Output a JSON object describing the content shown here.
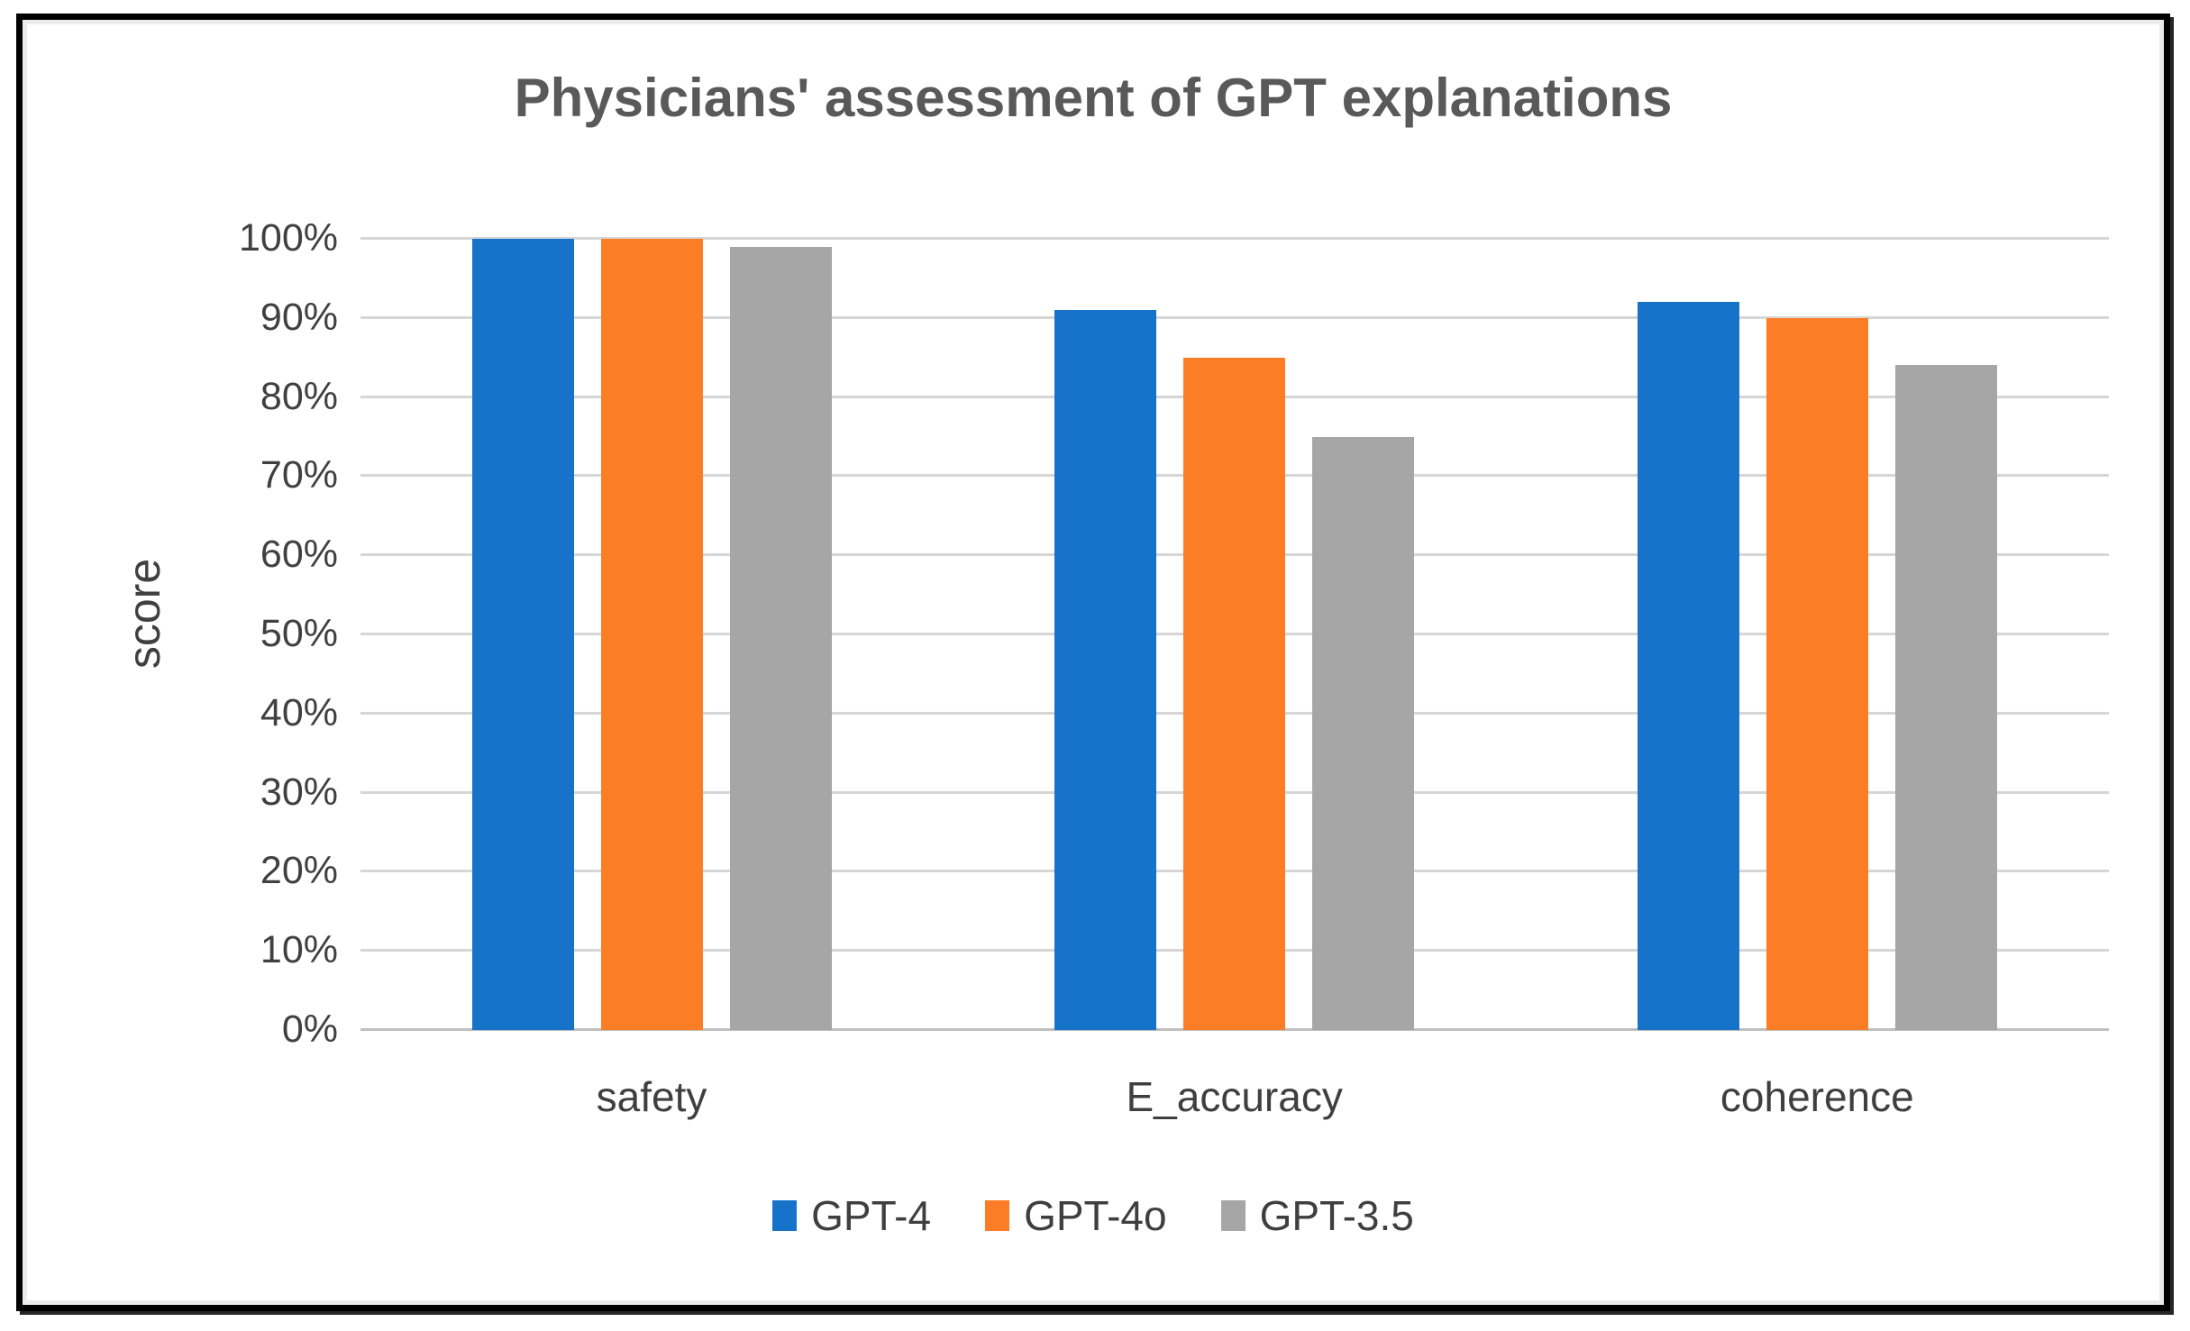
{
  "chart_data": {
    "type": "bar",
    "title": "Physicians' assessment of GPT explanations",
    "xlabel": "",
    "ylabel": "score",
    "categories": [
      "safety",
      "E_accuracy",
      "coherence"
    ],
    "series": [
      {
        "name": "GPT-4",
        "color": "#1772C9",
        "values": [
          100,
          91,
          92
        ]
      },
      {
        "name": "GPT-4o",
        "color": "#FB7D25",
        "values": [
          100,
          85,
          90
        ]
      },
      {
        "name": "GPT-3.5",
        "color": "#A6A6A6",
        "values": [
          99,
          75,
          84
        ]
      }
    ],
    "ylim": [
      0,
      100
    ],
    "ytick_step": 10,
    "ytick_labels": [
      "0%",
      "10%",
      "20%",
      "30%",
      "40%",
      "50%",
      "60%",
      "70%",
      "80%",
      "90%",
      "100%"
    ],
    "grid": true,
    "legend_position": "bottom",
    "style": {
      "title_color": "#595959",
      "label_color": "#3f3f3f",
      "tick_color": "#404040",
      "gridline_color": "#d6d6d6",
      "baseline_color": "#bfbfbf",
      "frame_border_color": "#000000"
    }
  }
}
